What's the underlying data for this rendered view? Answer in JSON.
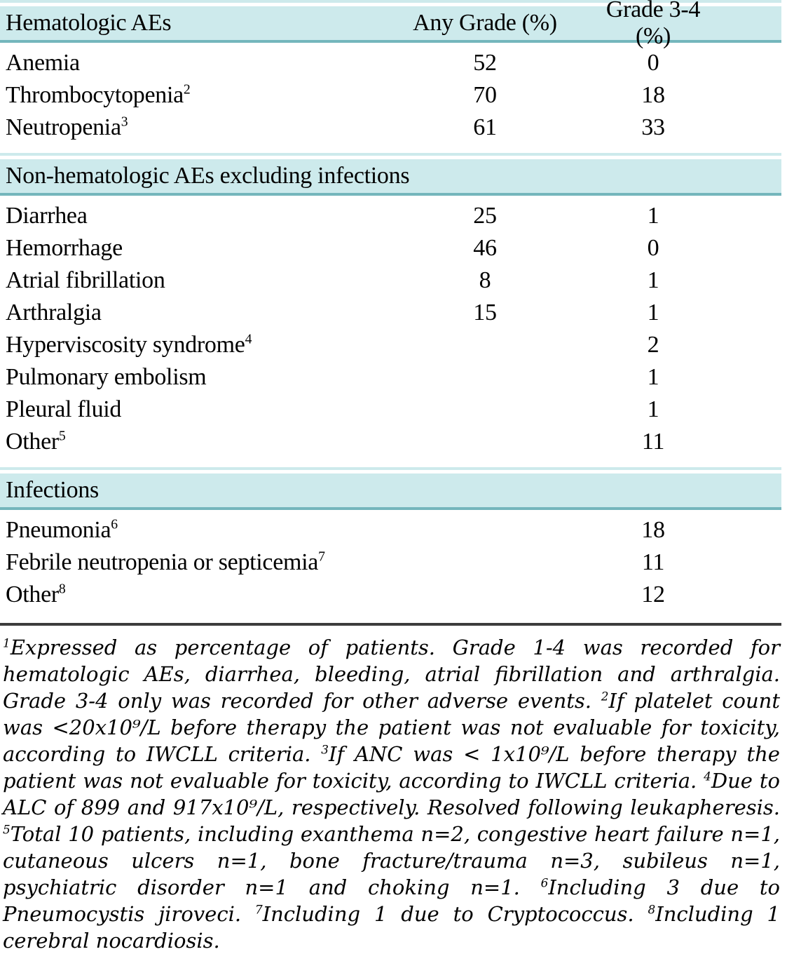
{
  "colors": {
    "band_bg": "#cdeaec",
    "band_rule": "#74b6bc",
    "dark_rule": "#3c3c3c",
    "text": "#000000"
  },
  "table": {
    "columns": [
      "Hematologic AEs",
      "Any Grade (%)",
      "Grade 3-4 (%)"
    ],
    "sections": [
      {
        "title": "",
        "rows": [
          {
            "label": "Anemia",
            "sup": "",
            "any_grade": "52",
            "grade_3_4": "0"
          },
          {
            "label": "Thrombocytopenia",
            "sup": "2",
            "any_grade": "70",
            "grade_3_4": "18"
          },
          {
            "label": "Neutropenia",
            "sup": "3",
            "any_grade": "61",
            "grade_3_4": "33"
          }
        ]
      },
      {
        "title": "Non-hematologic AEs excluding infections",
        "rows": [
          {
            "label": "Diarrhea",
            "sup": "",
            "any_grade": "25",
            "grade_3_4": "1"
          },
          {
            "label": "Hemorrhage",
            "sup": "",
            "any_grade": "46",
            "grade_3_4": "0"
          },
          {
            "label": "Atrial fibrillation",
            "sup": "",
            "any_grade": "8",
            "grade_3_4": "1"
          },
          {
            "label": "Arthralgia",
            "sup": "",
            "any_grade": "15",
            "grade_3_4": "1"
          },
          {
            "label": "Hyperviscosity syndrome",
            "sup": "4",
            "any_grade": "",
            "grade_3_4": "2"
          },
          {
            "label": "Pulmonary embolism",
            "sup": "",
            "any_grade": "",
            "grade_3_4": "1"
          },
          {
            "label": "Pleural fluid",
            "sup": "",
            "any_grade": "",
            "grade_3_4": "1"
          },
          {
            "label": "Other",
            "sup": "5",
            "any_grade": "",
            "grade_3_4": "11"
          }
        ]
      },
      {
        "title": "Infections",
        "rows": [
          {
            "label": "Pneumonia",
            "sup": "6",
            "any_grade": "",
            "grade_3_4": "18"
          },
          {
            "label": "Febrile neutropenia or septicemia",
            "sup": "7",
            "any_grade": "",
            "grade_3_4": "11"
          },
          {
            "label": "Other",
            "sup": "8",
            "any_grade": "",
            "grade_3_4": "12"
          }
        ]
      }
    ]
  },
  "footnotes": [
    {
      "sup": "1",
      "text": "Expressed as percentage of patients. Grade 1-4 was recorded for hematologic AEs, diarrhea, bleeding, atrial fibrillation and arthralgia. Grade 3-4 only was recorded for other adverse events."
    },
    {
      "sup": "2",
      "text": "If platelet count was <20x10⁹/L before therapy the patient was not evaluable for toxicity, according to IWCLL criteria."
    },
    {
      "sup": "3",
      "text": "If ANC was < 1x10⁹/L before therapy the patient was not evaluable for toxicity, according to IWCLL criteria."
    },
    {
      "sup": "4",
      "text": "Due to ALC of 899 and 917x10⁹/L, respectively. Resolved following leukapheresis."
    },
    {
      "sup": "5",
      "text": "Total 10 patients, including exanthema n=2, congestive heart failure n=1, cutaneous ulcers n=1, bone fracture/trauma n=3, subileus n=1, psychiatric disorder n=1 and choking n=1."
    },
    {
      "sup": "6",
      "text": "Including 3 due to Pneumocystis jiroveci."
    },
    {
      "sup": "7",
      "text": "Including 1 due to Cryptococcus."
    },
    {
      "sup": "8",
      "text": "Including 1 cerebral nocardiosis."
    }
  ]
}
